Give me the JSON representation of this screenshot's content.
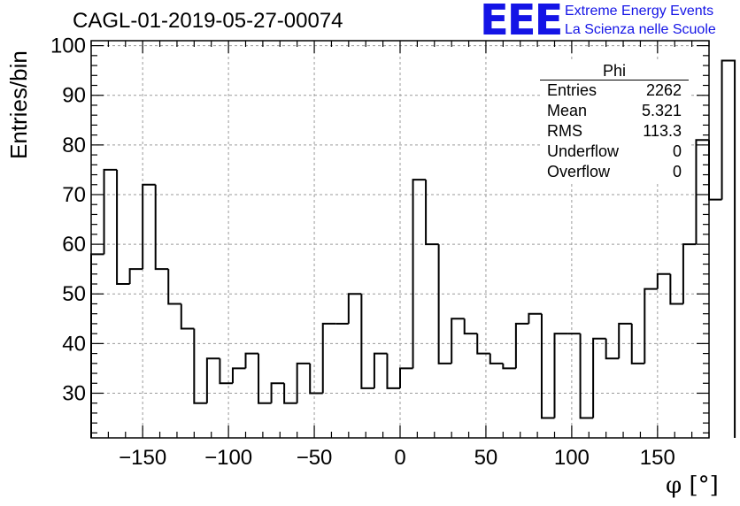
{
  "header": {
    "title": "CAGL-01-2019-05-27-00074",
    "logo_text": "EEE",
    "logo_line1": "Extreme Energy Events",
    "logo_line2": "La Scienza nelle Scuole"
  },
  "stats_box": {
    "title": "Phi",
    "rows": [
      {
        "label": "Entries",
        "value": "2262"
      },
      {
        "label": "Mean",
        "value": "5.321"
      },
      {
        "label": "RMS",
        "value": "113.3"
      },
      {
        "label": "Underflow",
        "value": "0"
      },
      {
        "label": "Overflow",
        "value": "0"
      }
    ]
  },
  "chart_data": {
    "type": "bar",
    "style": "step-histogram",
    "title": "CAGL-01-2019-05-27-00074",
    "xlabel": "φ [°]",
    "ylabel": "Entries/bin",
    "xlim": [
      -180,
      180
    ],
    "ylim": [
      21,
      101
    ],
    "bin_width": 7.5,
    "x_ticks": [
      -150,
      -100,
      -50,
      0,
      50,
      100,
      150
    ],
    "y_ticks": [
      30,
      40,
      50,
      60,
      70,
      80,
      90,
      100
    ],
    "grid": true,
    "legend": "none",
    "line_color": "#000000",
    "series": [
      {
        "values": [
          58,
          75,
          52,
          55,
          72,
          55,
          48,
          43,
          28,
          37,
          32,
          35,
          38,
          28,
          32,
          28,
          36,
          30,
          44,
          44,
          50,
          31,
          38,
          31,
          35,
          73,
          60,
          36,
          45,
          42,
          38,
          36,
          35,
          44,
          46,
          25,
          42,
          42,
          25,
          41,
          37,
          44,
          36,
          51,
          54,
          48,
          60,
          81,
          69,
          97
        ]
      }
    ]
  }
}
